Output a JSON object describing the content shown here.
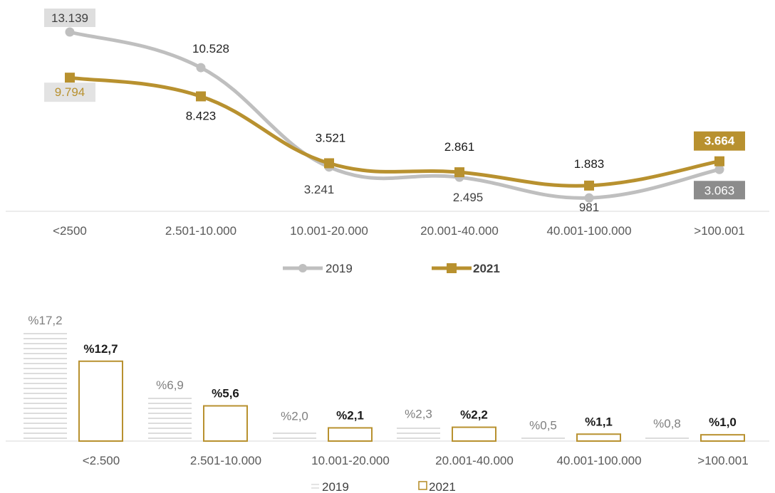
{
  "colors": {
    "gray": "#bfbfbf",
    "dark_gray": "#8c8c8c",
    "gold": "#b8912f",
    "text": "#1a1a1a",
    "tick": "#595959"
  },
  "chart_data": [
    {
      "type": "line",
      "categories": [
        "<2500",
        "2.501-10.000",
        "10.001-20.000",
        "20.001-40.000",
        "40.001-100.000",
        ">100.001"
      ],
      "series": [
        {
          "name": "2019",
          "values": [
            13139,
            10528,
            3241,
            2495,
            981,
            3063
          ],
          "labels": [
            "13.139",
            "10.528",
            "3.241",
            "2.495",
            "981",
            "3.063"
          ]
        },
        {
          "name": "2021",
          "values": [
            9794,
            8423,
            3521,
            2861,
            1883,
            3664
          ],
          "labels": [
            "9.794",
            "8.423",
            "3.521",
            "2.861",
            "1.883",
            "3.664"
          ]
        }
      ],
      "legend": "bottom",
      "grid": false
    },
    {
      "type": "bar",
      "categories": [
        "<2.500",
        "2.501-10.000",
        "10.001-20.000",
        "20.001-40.000",
        "40.001-100.000",
        ">100.001"
      ],
      "series": [
        {
          "name": "2019",
          "values": [
            17.2,
            6.9,
            2.0,
            2.3,
            0.5,
            0.8
          ],
          "labels": [
            "%17,2",
            "%6,9",
            "%2,0",
            "%2,3",
            "%0,5",
            "%0,8"
          ]
        },
        {
          "name": "2021",
          "values": [
            12.7,
            5.6,
            2.1,
            2.2,
            1.1,
            1.0
          ],
          "labels": [
            "%12,7",
            "%5,6",
            "%2,1",
            "%2,2",
            "%1,1",
            "%1,0"
          ]
        }
      ],
      "legend": "bottom",
      "grid": false
    }
  ]
}
